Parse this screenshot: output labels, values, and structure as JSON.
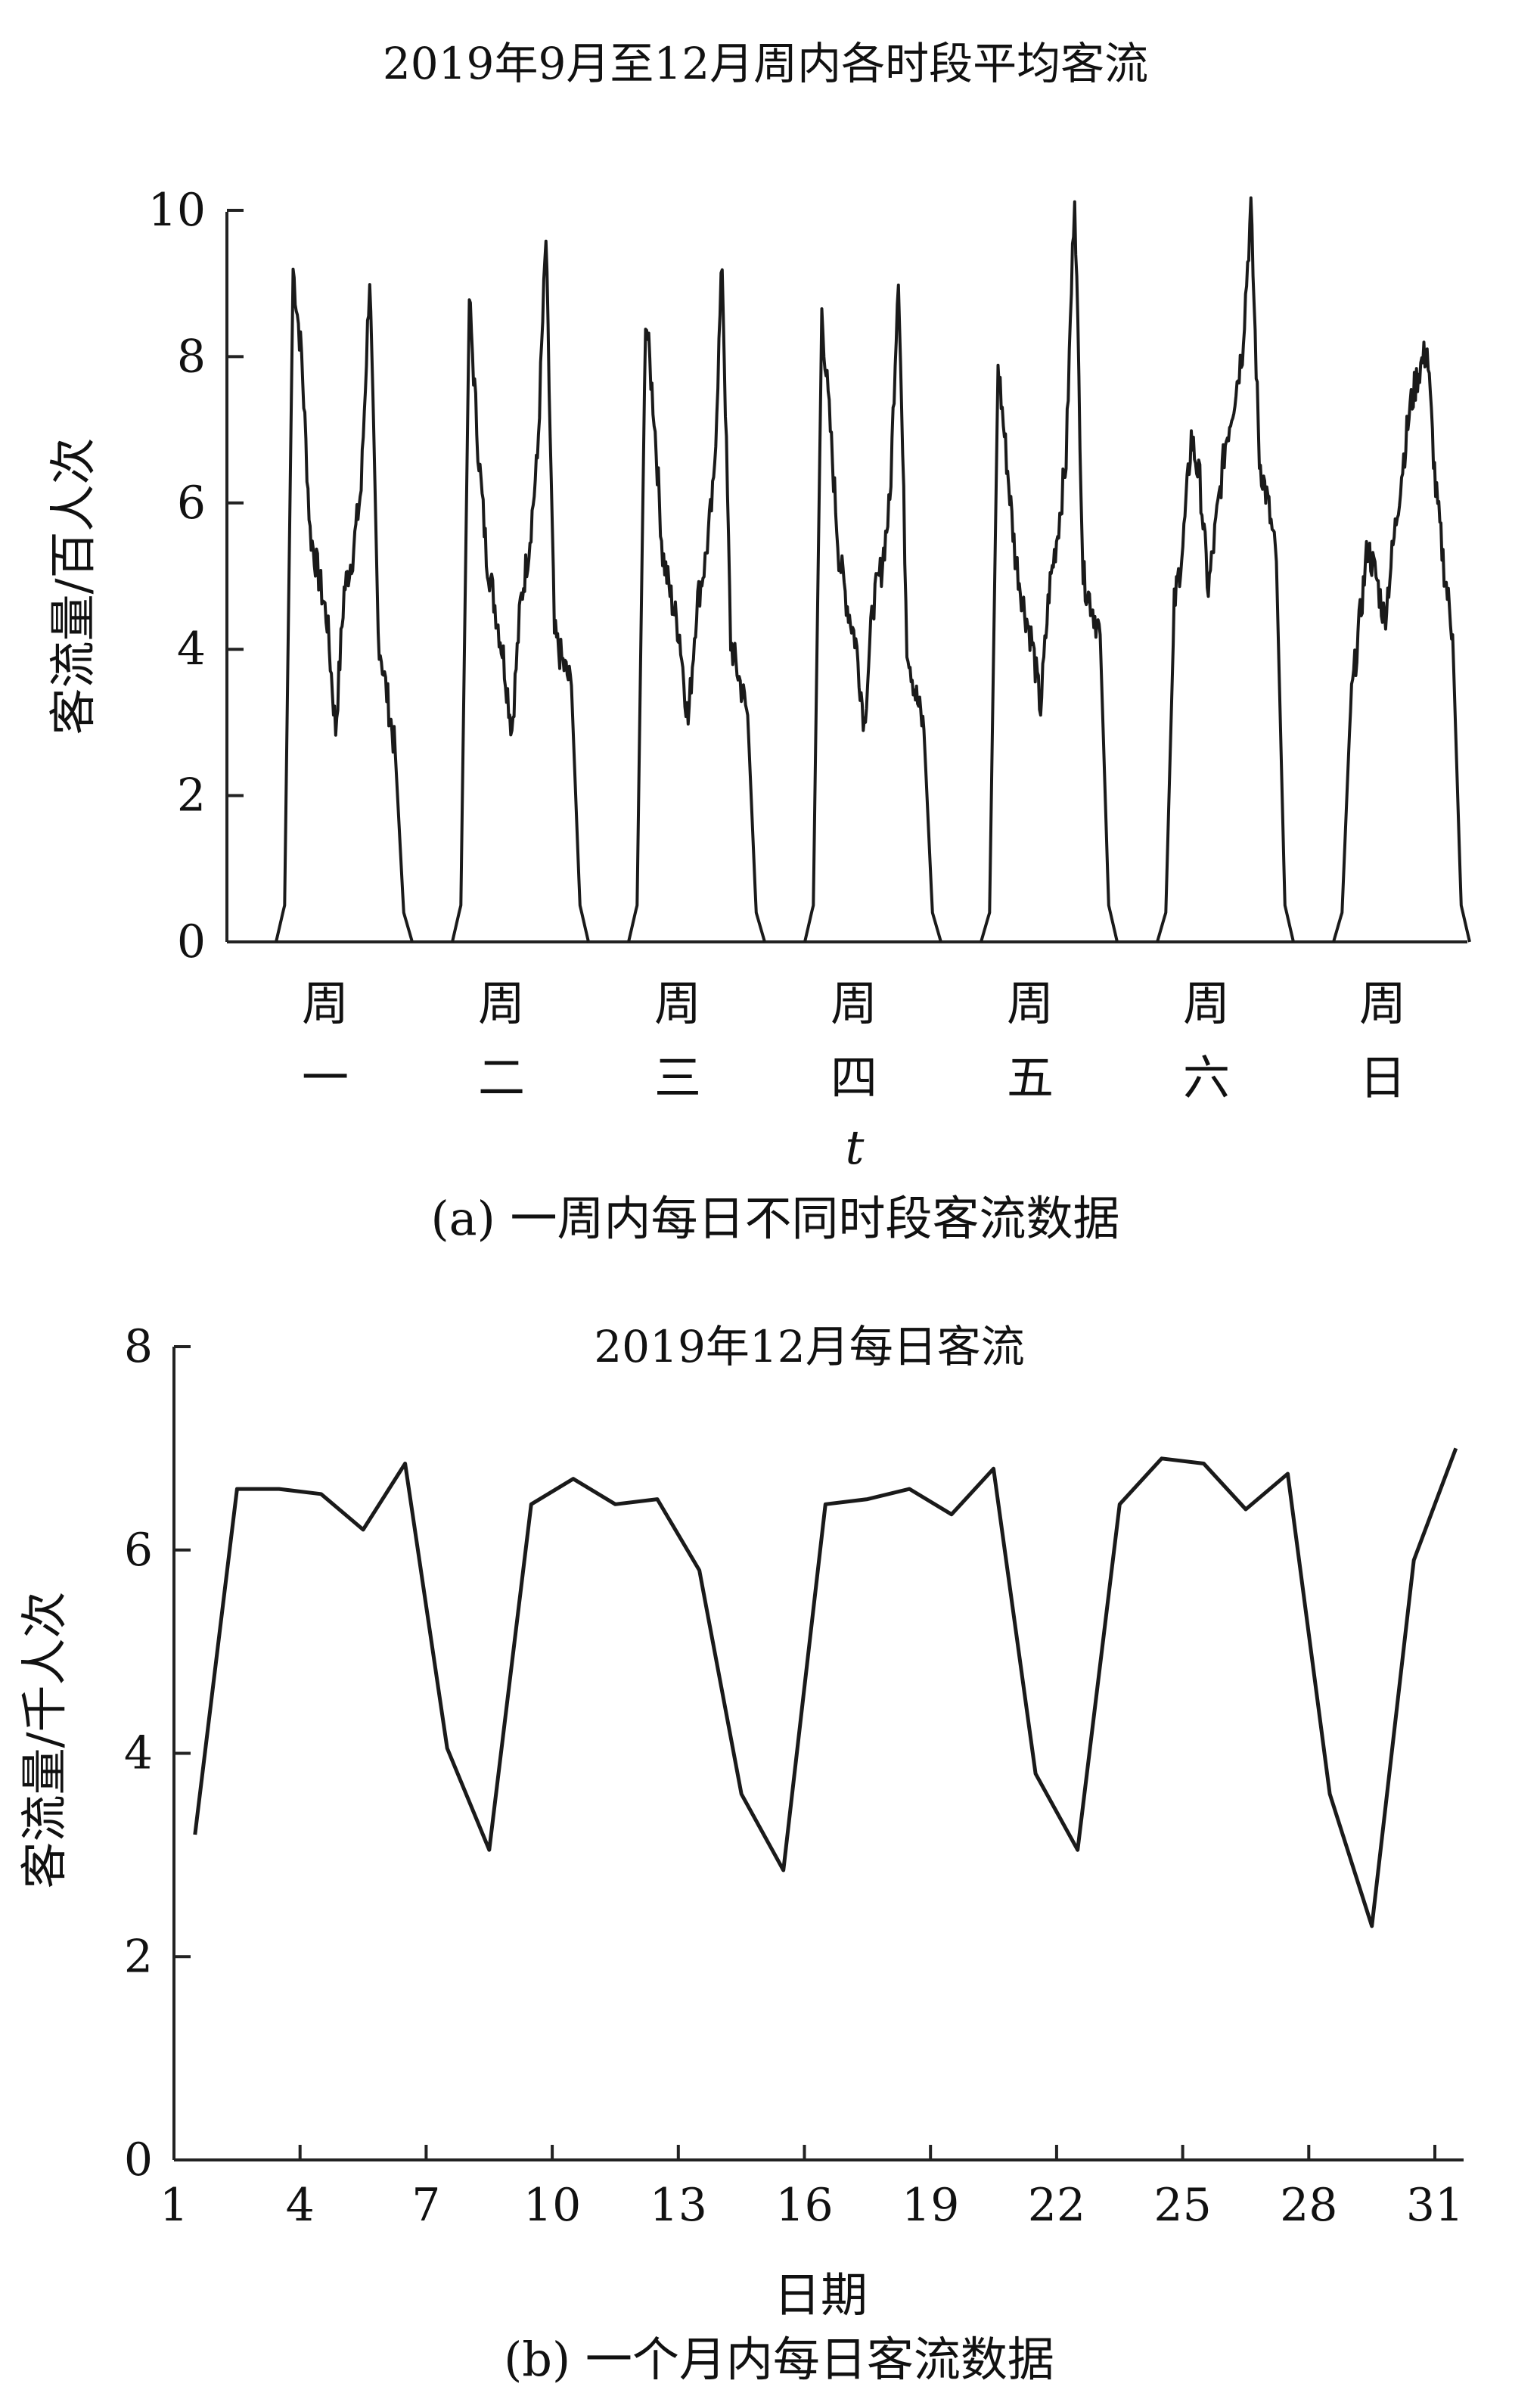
{
  "colors": {
    "line": "#1a1a1a",
    "axis": "#222222",
    "background": "#ffffff"
  },
  "chart_data": [
    {
      "type": "line",
      "title": "2019年9月至12月周内各时段平均客流",
      "xlabel": "t",
      "ylabel": "客流量/百人次",
      "caption": "(a) 一周内每日不同时段客流数据",
      "ylim": [
        0,
        10
      ],
      "yticks": [
        "0",
        "2",
        "4",
        "6",
        "8",
        "10"
      ],
      "grid": false,
      "categories": [
        {
          "top": "周",
          "bottom": "一"
        },
        {
          "top": "周",
          "bottom": "二"
        },
        {
          "top": "周",
          "bottom": "三"
        },
        {
          "top": "周",
          "bottom": "四"
        },
        {
          "top": "周",
          "bottom": "五"
        },
        {
          "top": "周",
          "bottom": "六"
        },
        {
          "top": "周",
          "bottom": "日"
        }
      ],
      "daily_profiles": [
        {
          "day": "周一",
          "hours": [
            0,
            0.5,
            9.2,
            8.0,
            5.6,
            5.0,
            4.4,
            2.9,
            4.8,
            5.3,
            6.2,
            9.1,
            4.2,
            3.4,
            2.6,
            0.4,
            0
          ]
        },
        {
          "day": "周二",
          "hours": [
            0,
            0.5,
            8.8,
            6.8,
            5.3,
            4.6,
            3.9,
            2.9,
            4.6,
            5.4,
            6.6,
            9.6,
            4.2,
            3.8,
            3.5,
            0.5,
            0
          ]
        },
        {
          "day": "周三",
          "hours": [
            0,
            0.5,
            8.6,
            7.2,
            5.3,
            4.7,
            4.2,
            3.0,
            4.6,
            5.2,
            6.2,
            9.3,
            4.1,
            3.6,
            3.1,
            0.4,
            0
          ]
        },
        {
          "day": "周四",
          "hours": [
            0,
            0.5,
            8.6,
            7.0,
            5.3,
            4.6,
            4.1,
            3.0,
            4.6,
            5.1,
            6.0,
            9.2,
            4.1,
            3.4,
            2.9,
            0.4,
            0
          ]
        },
        {
          "day": "周五",
          "hours": [
            0,
            0.4,
            7.9,
            6.6,
            5.3,
            4.6,
            4.1,
            3.2,
            4.8,
            5.6,
            6.6,
            10.3,
            5.0,
            4.6,
            4.2,
            0.5,
            0
          ]
        },
        {
          "day": "周六",
          "hours": [
            0,
            0.4,
            4.6,
            5.4,
            6.9,
            6.3,
            4.8,
            5.8,
            6.8,
            7.4,
            8.1,
            10.0,
            6.6,
            6.0,
            5.2,
            0.5,
            0
          ]
        },
        {
          "day": "周日",
          "hours": [
            0,
            0.4,
            3.2,
            4.3,
            5.4,
            5.0,
            4.4,
            5.4,
            6.4,
            7.3,
            7.8,
            8.1,
            6.2,
            5.1,
            4.2,
            0.5,
            0
          ]
        }
      ]
    },
    {
      "type": "line",
      "title": "2019年12月每日客流",
      "xlabel": "日期",
      "ylabel": "客流量/千人次",
      "caption": "(b) 一个月内每日客流数据",
      "xlim": [
        1,
        31.5
      ],
      "ylim": [
        0,
        8
      ],
      "xticks": [
        "1",
        "4",
        "7",
        "10",
        "13",
        "16",
        "19",
        "22",
        "25",
        "28",
        "31"
      ],
      "yticks": [
        "0",
        "2",
        "4",
        "6",
        "8"
      ],
      "grid": false,
      "x": [
        1.5,
        2.5,
        3.5,
        4.5,
        5.5,
        6.5,
        7.5,
        8.5,
        9.5,
        10.5,
        11.5,
        12.5,
        13.5,
        14.5,
        15.5,
        16.5,
        17.5,
        18.5,
        19.5,
        20.5,
        21.5,
        22.5,
        23.5,
        24.5,
        25.5,
        26.5,
        27.5,
        28.5,
        29.5,
        30.5,
        31.5
      ],
      "values": [
        3.2,
        6.6,
        6.6,
        6.55,
        6.2,
        6.85,
        4.05,
        3.05,
        6.45,
        6.7,
        6.45,
        6.5,
        5.8,
        3.6,
        2.85,
        6.45,
        6.5,
        6.6,
        6.35,
        6.8,
        3.8,
        3.05,
        6.45,
        6.9,
        6.85,
        6.4,
        6.75,
        3.6,
        2.3,
        5.9,
        7.0
      ]
    }
  ]
}
